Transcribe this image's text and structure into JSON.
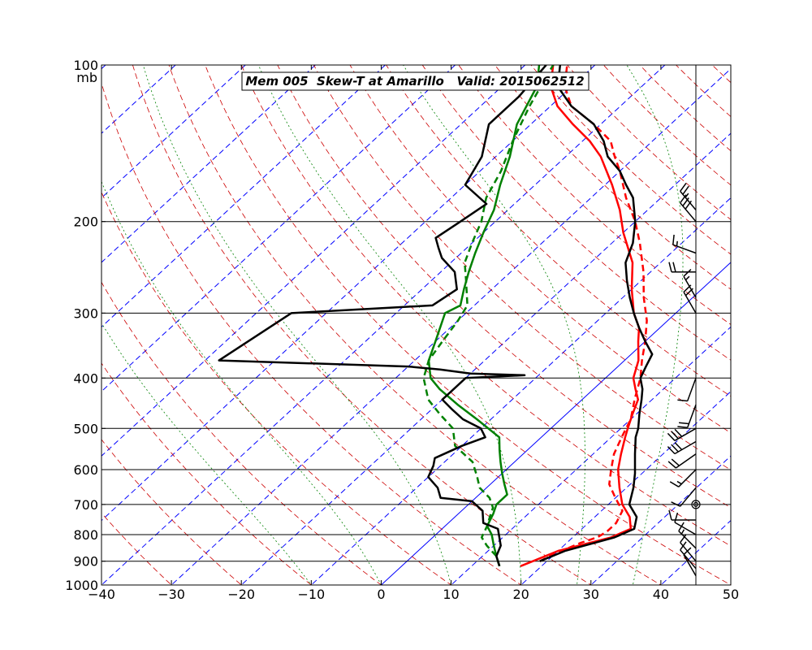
{
  "colors": {
    "temperature": "#ff0000",
    "dewpoint": "#008000",
    "temperature_other": "#000000",
    "dewpoint_other": "#000000",
    "isotherm": "#0000ff",
    "dry_adiabat": "#cc0000",
    "moist_adiabat": "#008000",
    "wind_barb": "#000000",
    "isobar": "#000000"
  },
  "chart_data": {
    "type": "line",
    "title": "Mem 005  Skew-T at Amarillo   Valid: 2015062512",
    "ylabel_unit": "mb",
    "xlim": [
      -40,
      50
    ],
    "ylim": [
      1000,
      100
    ],
    "yscale": "log",
    "skew": 35,
    "x_ticks": [
      "−40",
      "−30",
      "−20",
      "−10",
      "0",
      "10",
      "20",
      "30",
      "40",
      "50"
    ],
    "x_tick_values": [
      -40,
      -30,
      -20,
      -10,
      0,
      10,
      20,
      30,
      40,
      50
    ],
    "y_ticks": [
      "100",
      "200",
      "300",
      "400",
      "500",
      "600",
      "700",
      "800",
      "900",
      "1000"
    ],
    "y_tick_values": [
      100,
      200,
      300,
      400,
      500,
      600,
      700,
      800,
      900,
      1000
    ],
    "grid": true,
    "isotherms": [
      -120,
      -110,
      -100,
      -90,
      -80,
      -70,
      -60,
      -50,
      -40,
      -30,
      -20,
      -10,
      0,
      10,
      20,
      30,
      40,
      50
    ],
    "highlighted_isotherm": 0,
    "dry_adiabats_theta_c": [
      -30,
      -20,
      -10,
      0,
      10,
      20,
      30,
      40,
      50,
      60,
      70,
      80,
      90,
      100,
      110,
      120,
      130,
      140,
      150,
      160,
      170,
      180,
      190,
      200
    ],
    "moist_adiabats_theta_w_c": [
      -10,
      0,
      10,
      20,
      28,
      36
    ],
    "series": [
      {
        "kind": "temperature",
        "style": "solid",
        "points": [
          [
            920,
            17
          ],
          [
            900,
            18
          ],
          [
            860,
            20
          ],
          [
            810,
            25.5
          ],
          [
            780,
            27
          ],
          [
            740,
            25
          ],
          [
            700,
            22
          ],
          [
            650,
            19
          ],
          [
            600,
            16
          ],
          [
            560,
            14
          ],
          [
            520,
            12
          ],
          [
            500,
            11
          ],
          [
            470,
            9.5
          ],
          [
            440,
            8
          ],
          [
            420,
            6
          ],
          [
            400,
            4
          ],
          [
            370,
            2
          ],
          [
            340,
            -1
          ],
          [
            320,
            -3
          ],
          [
            300,
            -6
          ],
          [
            270,
            -10
          ],
          [
            240,
            -14
          ],
          [
            210,
            -20
          ],
          [
            190,
            -24
          ],
          [
            170,
            -29
          ],
          [
            150,
            -35
          ],
          [
            140,
            -39
          ],
          [
            130,
            -44
          ],
          [
            120,
            -49
          ],
          [
            110,
            -53
          ],
          [
            100,
            -56
          ]
        ]
      },
      {
        "kind": "temperature",
        "style": "dashed",
        "points": [
          [
            900,
            19
          ],
          [
            870,
            20
          ],
          [
            830,
            22
          ],
          [
            810,
            23.5
          ],
          [
            790,
            24
          ],
          [
            760,
            24
          ],
          [
            720,
            23
          ],
          [
            680,
            20
          ],
          [
            640,
            17
          ],
          [
            600,
            15
          ],
          [
            560,
            13
          ],
          [
            520,
            11.5
          ],
          [
            480,
            10
          ],
          [
            440,
            7.5
          ],
          [
            400,
            5
          ],
          [
            370,
            2.5
          ],
          [
            340,
            0
          ],
          [
            310,
            -3
          ],
          [
            280,
            -7
          ],
          [
            250,
            -11
          ],
          [
            220,
            -16
          ],
          [
            200,
            -20
          ],
          [
            180,
            -25
          ],
          [
            160,
            -30
          ],
          [
            150,
            -33
          ],
          [
            140,
            -36
          ],
          [
            130,
            -41
          ],
          [
            120,
            -47
          ],
          [
            110,
            -51
          ],
          [
            100,
            -54
          ]
        ]
      },
      {
        "kind": "temperature_other",
        "style": "solid",
        "points": [
          [
            900,
            19
          ],
          [
            860,
            21
          ],
          [
            810,
            26
          ],
          [
            780,
            27.5
          ],
          [
            740,
            26
          ],
          [
            700,
            23
          ],
          [
            650,
            21
          ],
          [
            610,
            19
          ],
          [
            560,
            16
          ],
          [
            520,
            13.5
          ],
          [
            500,
            12.5
          ],
          [
            470,
            10.5
          ],
          [
            440,
            8.5
          ],
          [
            420,
            7
          ],
          [
            400,
            5
          ],
          [
            380,
            4
          ],
          [
            360,
            3
          ],
          [
            340,
            0
          ],
          [
            320,
            -3
          ],
          [
            300,
            -6
          ],
          [
            280,
            -9
          ],
          [
            260,
            -12
          ],
          [
            240,
            -15
          ],
          [
            220,
            -17
          ],
          [
            200,
            -20
          ],
          [
            180,
            -24
          ],
          [
            170,
            -27
          ],
          [
            160,
            -30
          ],
          [
            150,
            -34
          ],
          [
            140,
            -37
          ],
          [
            130,
            -41
          ],
          [
            120,
            -47
          ],
          [
            110,
            -52
          ],
          [
            100,
            -55
          ]
        ]
      },
      {
        "kind": "dewpoint",
        "style": "solid",
        "points": [
          [
            920,
            14
          ],
          [
            880,
            12
          ],
          [
            840,
            10
          ],
          [
            800,
            8
          ],
          [
            770,
            6
          ],
          [
            730,
            5
          ],
          [
            700,
            4
          ],
          [
            670,
            4
          ],
          [
            640,
            2
          ],
          [
            610,
            0
          ],
          [
            580,
            -2
          ],
          [
            550,
            -4
          ],
          [
            520,
            -6
          ],
          [
            480,
            -12
          ],
          [
            450,
            -17
          ],
          [
            420,
            -22
          ],
          [
            400,
            -25
          ],
          [
            370,
            -28
          ],
          [
            340,
            -30
          ],
          [
            300,
            -33
          ],
          [
            290,
            -32
          ],
          [
            270,
            -34
          ],
          [
            250,
            -36
          ],
          [
            230,
            -38
          ],
          [
            210,
            -40
          ],
          [
            190,
            -42
          ],
          [
            170,
            -45
          ],
          [
            150,
            -48
          ],
          [
            130,
            -52
          ],
          [
            110,
            -55
          ],
          [
            100,
            -58
          ]
        ]
      },
      {
        "kind": "dewpoint",
        "style": "dashed",
        "points": [
          [
            920,
            14
          ],
          [
            880,
            12
          ],
          [
            840,
            9
          ],
          [
            810,
            7
          ],
          [
            770,
            6
          ],
          [
            740,
            5
          ],
          [
            710,
            4
          ],
          [
            680,
            2
          ],
          [
            650,
            -1
          ],
          [
            620,
            -3
          ],
          [
            580,
            -6
          ],
          [
            540,
            -11
          ],
          [
            500,
            -14
          ],
          [
            470,
            -18
          ],
          [
            440,
            -22
          ],
          [
            400,
            -26
          ],
          [
            370,
            -28
          ],
          [
            340,
            -29
          ],
          [
            310,
            -30
          ],
          [
            290,
            -31
          ],
          [
            260,
            -35
          ],
          [
            240,
            -38
          ],
          [
            220,
            -40
          ],
          [
            200,
            -42
          ],
          [
            180,
            -45
          ],
          [
            160,
            -47
          ],
          [
            140,
            -50
          ],
          [
            120,
            -53
          ],
          [
            100,
            -56
          ]
        ]
      },
      {
        "kind": "dewpoint_other",
        "style": "solid",
        "points": [
          [
            920,
            14
          ],
          [
            880,
            12
          ],
          [
            840,
            11
          ],
          [
            780,
            8
          ],
          [
            760,
            5
          ],
          [
            720,
            3
          ],
          [
            690,
            0
          ],
          [
            680,
            -5
          ],
          [
            650,
            -7
          ],
          [
            620,
            -10
          ],
          [
            590,
            -11
          ],
          [
            570,
            -12
          ],
          [
            540,
            -10
          ],
          [
            520,
            -8
          ],
          [
            500,
            -10
          ],
          [
            480,
            -14
          ],
          [
            460,
            -17
          ],
          [
            440,
            -20
          ],
          [
            420,
            -20
          ],
          [
            400,
            -20
          ],
          [
            395,
            -12
          ],
          [
            392,
            -20
          ],
          [
            385,
            -25
          ],
          [
            380,
            -30
          ],
          [
            370,
            -58
          ],
          [
            300,
            -55
          ],
          [
            290,
            -36
          ],
          [
            270,
            -35
          ],
          [
            250,
            -38
          ],
          [
            235,
            -42
          ],
          [
            225,
            -44
          ],
          [
            215,
            -46
          ],
          [
            200,
            -45
          ],
          [
            185,
            -44
          ],
          [
            170,
            -50
          ],
          [
            150,
            -52
          ],
          [
            130,
            -56
          ],
          [
            115,
            -56
          ],
          [
            100,
            -57
          ]
        ]
      }
    ],
    "wind_barbs": [
      {
        "p": 960,
        "speed": 10,
        "dir": 330
      },
      {
        "p": 930,
        "speed": 10,
        "dir": 320
      },
      {
        "p": 900,
        "speed": 10,
        "dir": 320
      },
      {
        "p": 850,
        "speed": 15,
        "dir": 315
      },
      {
        "p": 800,
        "speed": 10,
        "dir": 300
      },
      {
        "p": 750,
        "speed": 10,
        "dir": 270
      },
      {
        "p": 700,
        "speed": 0,
        "dir": 0
      },
      {
        "p": 650,
        "speed": 10,
        "dir": 220
      },
      {
        "p": 600,
        "speed": 15,
        "dir": 225
      },
      {
        "p": 560,
        "speed": 20,
        "dir": 235
      },
      {
        "p": 530,
        "speed": 30,
        "dir": 240
      },
      {
        "p": 500,
        "speed": 30,
        "dir": 240
      },
      {
        "p": 450,
        "speed": 20,
        "dir": 200
      },
      {
        "p": 400,
        "speed": 10,
        "dir": 200
      },
      {
        "p": 300,
        "speed": 20,
        "dir": 330
      },
      {
        "p": 280,
        "speed": 15,
        "dir": 330
      },
      {
        "p": 250,
        "speed": 20,
        "dir": 270
      },
      {
        "p": 230,
        "speed": 15,
        "dir": 290
      },
      {
        "p": 200,
        "speed": 30,
        "dir": 320
      },
      {
        "p": 190,
        "speed": 25,
        "dir": 320
      }
    ]
  }
}
